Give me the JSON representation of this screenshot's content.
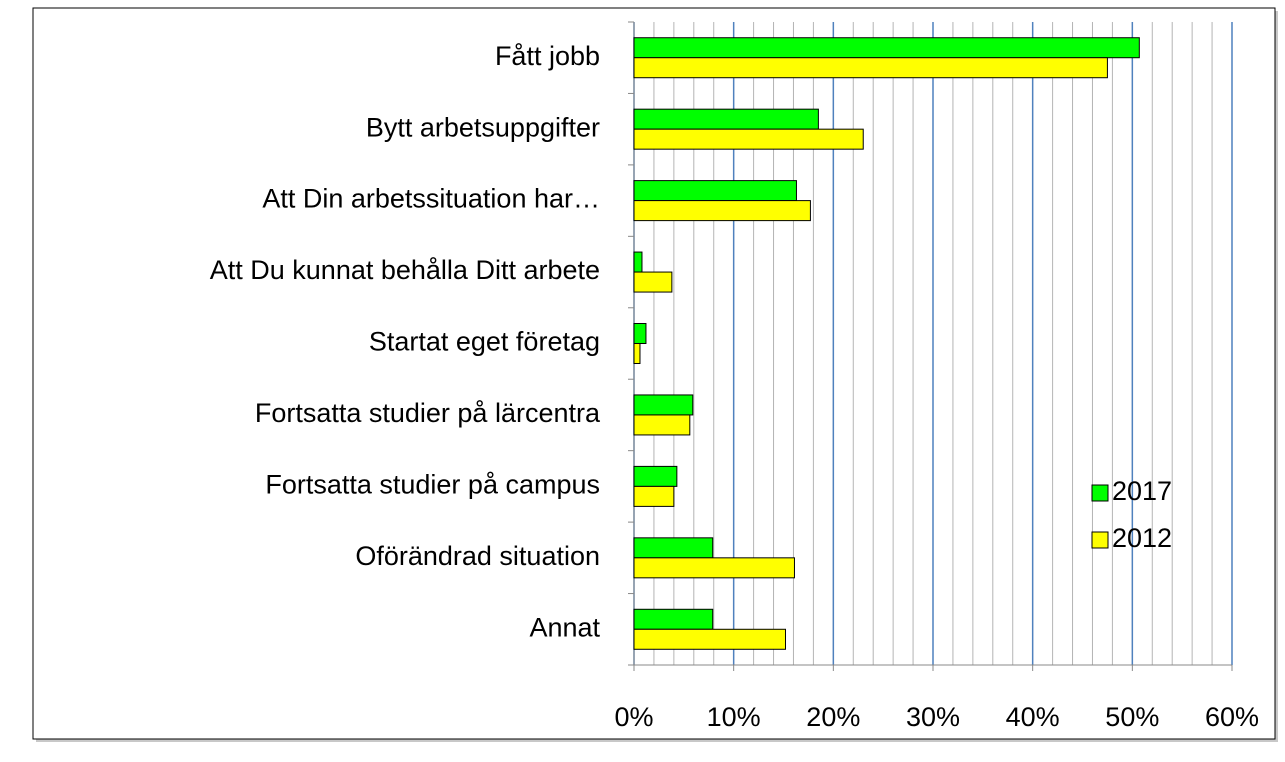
{
  "chart_data": {
    "type": "hbar",
    "categories": [
      "Fått jobb",
      "Bytt arbetsuppgifter",
      "Att Din arbetssituation har…",
      "Att Du kunnat behålla Ditt arbete",
      "Startat eget företag",
      "Fortsatta studier på lärcentra",
      "Fortsatta studier på campus",
      "Oförändrad situation",
      "Annat"
    ],
    "series": [
      {
        "name": "2017",
        "color": "#00ff00",
        "values": [
          50.7,
          18.5,
          16.3,
          0.8,
          1.2,
          5.9,
          4.3,
          7.9,
          7.9
        ]
      },
      {
        "name": "2012",
        "color": "#ffff00",
        "values": [
          47.5,
          23.0,
          17.7,
          3.8,
          0.6,
          5.6,
          4.0,
          16.1,
          15.2
        ]
      }
    ],
    "xlim": [
      0,
      60
    ],
    "xticks": [
      {
        "value": 0,
        "label": "0%"
      },
      {
        "value": 10,
        "label": "10%"
      },
      {
        "value": 20,
        "label": "20%"
      },
      {
        "value": 30,
        "label": "30%"
      },
      {
        "value": 40,
        "label": "40%"
      },
      {
        "value": 50,
        "label": "50%"
      },
      {
        "value": 60,
        "label": "60%"
      }
    ],
    "xminor_ticks": [
      2,
      4,
      6,
      8,
      12,
      14,
      16,
      18,
      22,
      24,
      26,
      28,
      32,
      34,
      36,
      38,
      42,
      44,
      46,
      48,
      52,
      54,
      56,
      58
    ],
    "grid": true,
    "legend": "right"
  }
}
